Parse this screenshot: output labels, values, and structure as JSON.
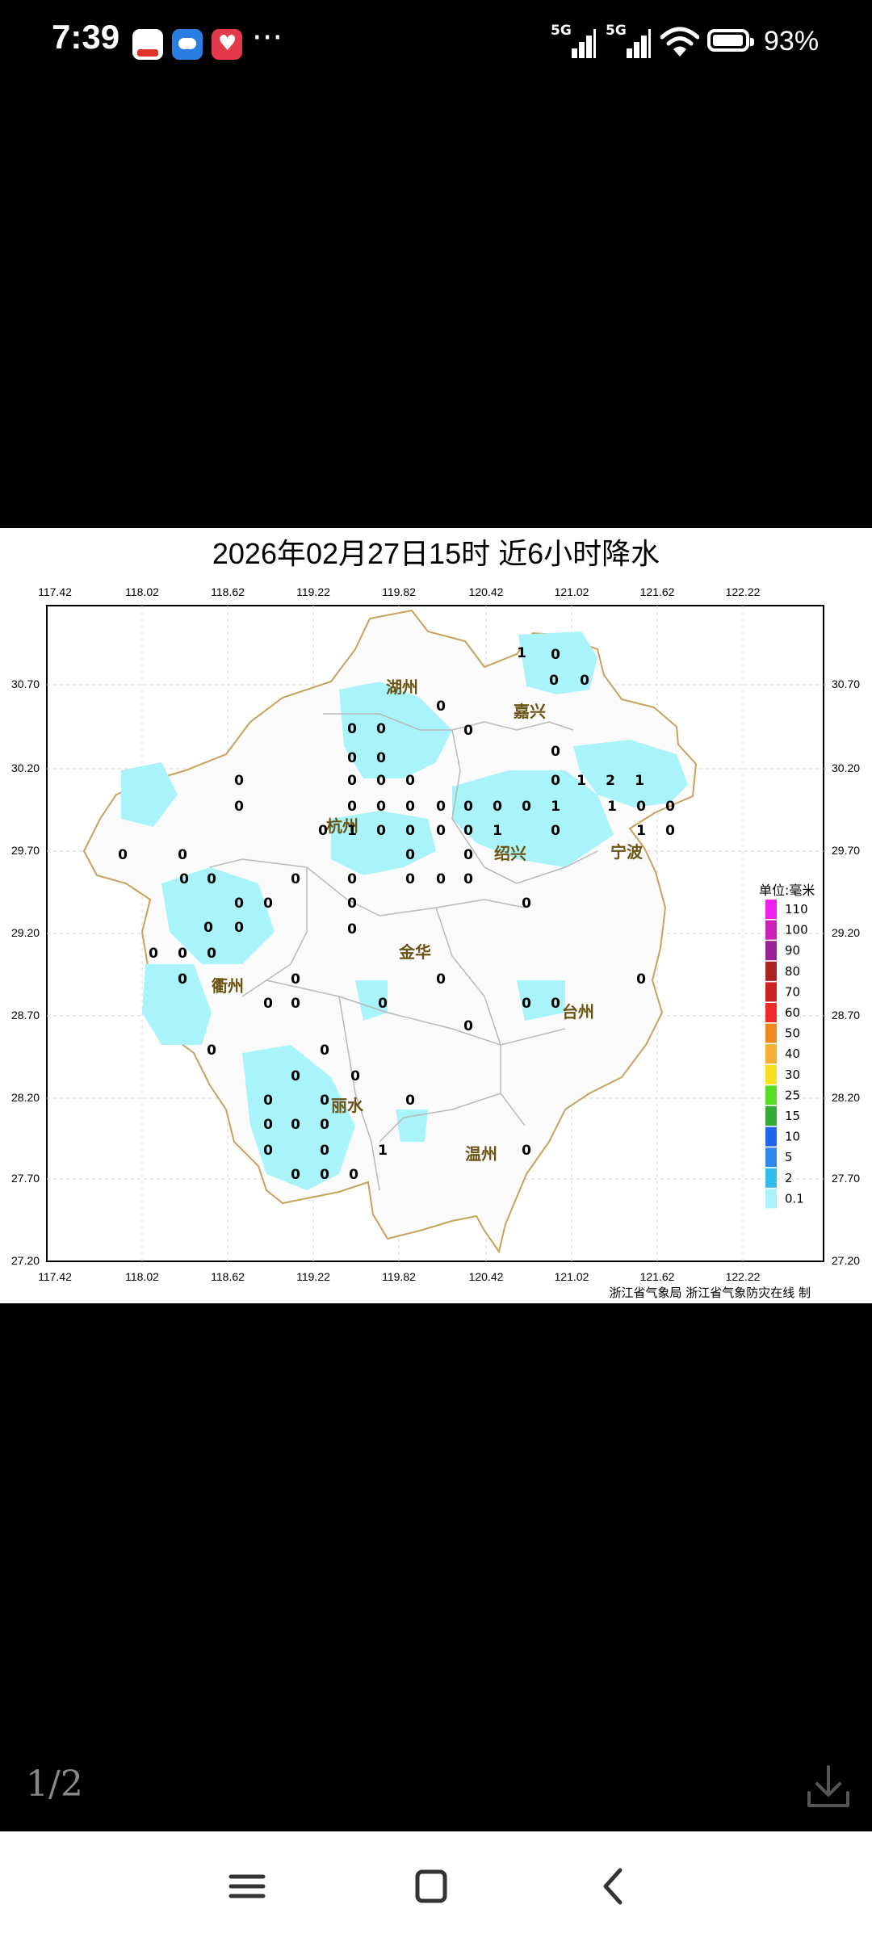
{
  "status_bar": {
    "time": "7:39",
    "more": "···",
    "net1": "5G",
    "net2": "5G",
    "battery": "93%",
    "icons": [
      "home-app-icon",
      "weather-app-icon",
      "heart-app-icon"
    ]
  },
  "map": {
    "title": "2026年02月27日15时  近6小时降水",
    "lon_ticks": [
      "117.42",
      "118.02",
      "118.62",
      "119.22",
      "119.82",
      "120.42",
      "121.02",
      "121.62",
      "122.22"
    ],
    "lat_ticks": [
      "30.70",
      "30.20",
      "29.70",
      "29.20",
      "28.70",
      "28.20",
      "27.70",
      "27.20"
    ],
    "cities": [
      "湖州",
      "嘉兴",
      "杭州",
      "绍兴",
      "宁波",
      "衢州",
      "金华",
      "台州",
      "丽水",
      "温州"
    ],
    "legend_title": "单位:毫米",
    "legend": [
      {
        "label": "110",
        "color": "#ee22ee"
      },
      {
        "label": "100",
        "color": "#cc22bb"
      },
      {
        "label": "90",
        "color": "#992299"
      },
      {
        "label": "80",
        "color": "#aa2222"
      },
      {
        "label": "70",
        "color": "#cc2222"
      },
      {
        "label": "60",
        "color": "#ee2a2a"
      },
      {
        "label": "50",
        "color": "#f08a20"
      },
      {
        "label": "40",
        "color": "#f4b030"
      },
      {
        "label": "30",
        "color": "#f8e020"
      },
      {
        "label": "25",
        "color": "#55dd22"
      },
      {
        "label": "15",
        "color": "#33aa33"
      },
      {
        "label": "10",
        "color": "#2266ee"
      },
      {
        "label": "5",
        "color": "#3388ee"
      },
      {
        "label": "2",
        "color": "#33bbee"
      },
      {
        "label": "0.1",
        "color": "#a8f4fa"
      }
    ],
    "source": "浙江省气象局  浙江省气象防灾在线  制",
    "station_values": [
      "1",
      "0",
      "0",
      "0",
      "0",
      "0",
      "0",
      "0",
      "0",
      "0",
      "0",
      "0",
      "0",
      "0",
      "0",
      "1",
      "2",
      "1",
      "1",
      "1",
      "0",
      "0",
      "1",
      "0",
      "0",
      "0",
      "0",
      "0",
      "0",
      "0",
      "0",
      "0",
      "0",
      "0",
      "1",
      "0",
      "0",
      "0",
      "0",
      "1",
      "0",
      "0",
      "0",
      "0",
      "0",
      "0",
      "0",
      "0",
      "0",
      "0",
      "0",
      "0",
      "0",
      "0",
      "0",
      "0",
      "0",
      "0",
      "0",
      "0",
      "0",
      "0",
      "0",
      "0",
      "0",
      "0",
      "0",
      "0",
      "0",
      "0",
      "0",
      "0",
      "0",
      "0",
      "0",
      "0",
      "0",
      "0",
      "0",
      "0",
      "0",
      "0",
      "0",
      "0",
      "1",
      "0",
      "0",
      "0",
      "0"
    ]
  },
  "viewer": {
    "page_counter": "1/2"
  }
}
